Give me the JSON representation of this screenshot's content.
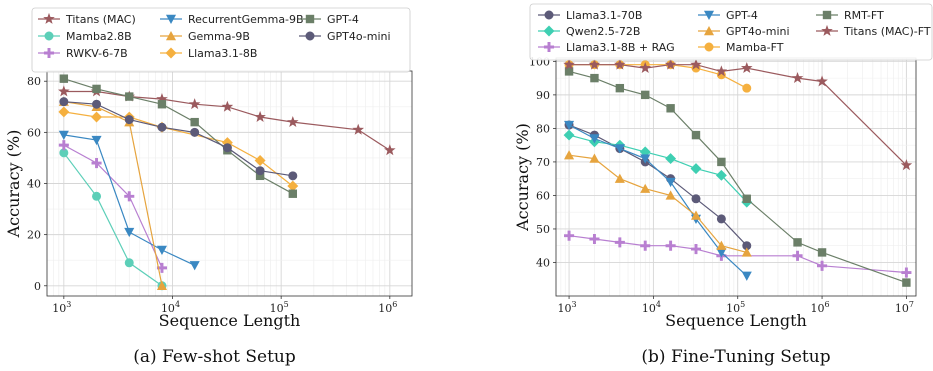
{
  "chart_data": [
    {
      "type": "line",
      "caption": "(a) Few-shot Setup",
      "xlabel": "Sequence Length",
      "ylabel": "Accuracy (%)",
      "xscale": "log",
      "xlim": [
        700,
        1600000
      ],
      "ylim": [
        -4,
        84
      ],
      "xticks": [
        {
          "v": 1000,
          "b": "10",
          "e": "3"
        },
        {
          "v": 10000,
          "b": "10",
          "e": "4"
        },
        {
          "v": 100000,
          "b": "10",
          "e": "5"
        },
        {
          "v": 1000000,
          "b": "10",
          "e": "6"
        }
      ],
      "yticks": [
        0,
        20,
        40,
        60,
        80
      ],
      "grid": true,
      "legend_position": "top",
      "legend_columns": 3,
      "series": [
        {
          "name": "Titans (MAC)",
          "color": "#9b5a5e",
          "marker": "star",
          "x": [
            1000,
            2000,
            4000,
            8000,
            16000,
            32000,
            64000,
            128000,
            512000,
            1000000
          ],
          "y": [
            76,
            76,
            74,
            73,
            71,
            70,
            66,
            64,
            61,
            53
          ]
        },
        {
          "name": "Mamba2.8B",
          "color": "#5ccfb8",
          "marker": "circle",
          "x": [
            1000,
            2000,
            4000,
            8000
          ],
          "y": [
            52,
            35,
            9,
            0
          ]
        },
        {
          "name": "RWKV-6-7B",
          "color": "#b87fd1",
          "marker": "plus",
          "x": [
            1000,
            2000,
            4000,
            8000
          ],
          "y": [
            55,
            48,
            35,
            7
          ]
        },
        {
          "name": "RecurrentGemma-9B",
          "color": "#3a88c2",
          "marker": "triangle-down",
          "x": [
            1000,
            2000,
            4000,
            8000,
            16000
          ],
          "y": [
            59,
            57,
            21,
            14,
            8
          ]
        },
        {
          "name": "Gemma-9B",
          "color": "#e6a43e",
          "marker": "triangle-up",
          "x": [
            1000,
            2000,
            4000,
            8000
          ],
          "y": [
            72,
            70,
            64,
            0
          ]
        },
        {
          "name": "Llama3.1-8B",
          "color": "#f5b03f",
          "marker": "diamond",
          "x": [
            1000,
            2000,
            4000,
            8000,
            32000,
            64000,
            128000
          ],
          "y": [
            68,
            66,
            66,
            62,
            56,
            49,
            39
          ]
        },
        {
          "name": "GPT-4",
          "color": "#6b7f68",
          "marker": "square",
          "x": [
            1000,
            2000,
            4000,
            8000,
            16000,
            32000,
            64000,
            128000
          ],
          "y": [
            81,
            77,
            74,
            71,
            64,
            53,
            43,
            36
          ]
        },
        {
          "name": "GPT4o-mini",
          "color": "#5c5a78",
          "marker": "circle",
          "x": [
            1000,
            2000,
            4000,
            8000,
            16000,
            32000,
            64000,
            128000
          ],
          "y": [
            72,
            71,
            65,
            62,
            60,
            54,
            45,
            43
          ]
        }
      ]
    },
    {
      "type": "line",
      "caption": "(b) Fine-Tuning Setup",
      "xlabel": "Sequence Length",
      "ylabel": "Accuracy (%)",
      "xscale": "log",
      "xlim": [
        700,
        13000000
      ],
      "ylim": [
        30,
        101
      ],
      "xticks": [
        {
          "v": 1000,
          "b": "10",
          "e": "3"
        },
        {
          "v": 10000,
          "b": "10",
          "e": "4"
        },
        {
          "v": 100000,
          "b": "10",
          "e": "5"
        },
        {
          "v": 1000000,
          "b": "10",
          "e": "6"
        },
        {
          "v": 10000000,
          "b": "10",
          "e": "7"
        }
      ],
      "yticks": [
        40,
        50,
        60,
        70,
        80,
        90,
        100
      ],
      "grid": true,
      "legend_position": "top",
      "legend_columns": 3,
      "series": [
        {
          "name": "Llama3.1-70B",
          "color": "#5c5a78",
          "marker": "circle",
          "x": [
            1000,
            2000,
            4000,
            8000,
            16000,
            32000,
            64000,
            128000
          ],
          "y": [
            81,
            78,
            74,
            70,
            65,
            59,
            53,
            45
          ]
        },
        {
          "name": "Qwen2.5-72B",
          "color": "#3ecfb2",
          "marker": "diamond",
          "x": [
            1000,
            2000,
            4000,
            8000,
            16000,
            32000,
            64000,
            128000
          ],
          "y": [
            78,
            76,
            75,
            73,
            71,
            68,
            66,
            58
          ]
        },
        {
          "name": "Llama3.1-8B + RAG",
          "color": "#b87fd1",
          "marker": "plus",
          "x": [
            1000,
            2000,
            4000,
            8000,
            16000,
            32000,
            64000,
            512000,
            1000000,
            10000000
          ],
          "y": [
            48,
            47,
            46,
            45,
            45,
            44,
            42,
            42,
            39,
            37
          ]
        },
        {
          "name": "GPT-4",
          "color": "#3a88c2",
          "marker": "triangle-down",
          "x": [
            1000,
            2000,
            4000,
            8000,
            16000,
            32000,
            64000,
            128000
          ],
          "y": [
            81,
            77,
            74,
            71,
            64,
            53,
            43,
            36
          ]
        },
        {
          "name": "GPT4o-mini",
          "color": "#e6a43e",
          "marker": "triangle-up",
          "x": [
            1000,
            2000,
            4000,
            8000,
            16000,
            32000,
            64000,
            128000
          ],
          "y": [
            72,
            71,
            65,
            62,
            60,
            54,
            45,
            43
          ]
        },
        {
          "name": "Mamba-FT",
          "color": "#f5b03f",
          "marker": "circle",
          "x": [
            1000,
            2000,
            4000,
            8000,
            16000,
            32000,
            64000,
            128000
          ],
          "y": [
            99,
            99,
            99,
            99,
            99,
            98,
            96,
            92
          ]
        },
        {
          "name": "RMT-FT",
          "color": "#6b7f68",
          "marker": "square",
          "x": [
            1000,
            2000,
            4000,
            8000,
            16000,
            32000,
            64000,
            128000,
            512000,
            1000000,
            10000000
          ],
          "y": [
            97,
            95,
            92,
            90,
            86,
            78,
            70,
            59,
            46,
            43,
            34
          ]
        },
        {
          "name": "Titans (MAC)-FT",
          "color": "#9b5a5e",
          "marker": "star",
          "x": [
            1000,
            2000,
            4000,
            8000,
            16000,
            32000,
            64000,
            128000,
            512000,
            1000000,
            10000000
          ],
          "y": [
            99,
            99,
            99,
            98,
            99,
            99,
            97,
            98,
            95,
            94,
            69
          ]
        }
      ]
    }
  ]
}
